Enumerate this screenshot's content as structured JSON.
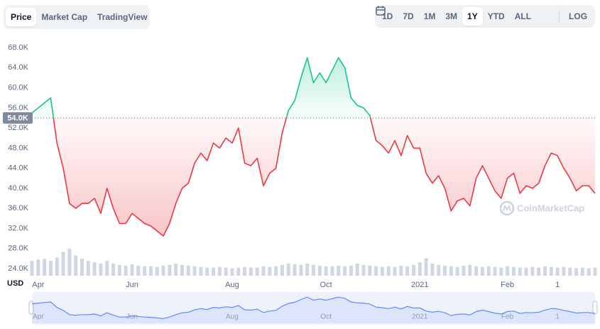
{
  "toolbar": {
    "tabs": [
      {
        "label": "Price",
        "active": true
      },
      {
        "label": "Market Cap"
      },
      {
        "label": "TradingView"
      }
    ],
    "ranges": [
      {
        "label": "1D"
      },
      {
        "label": "7D"
      },
      {
        "label": "1M"
      },
      {
        "label": "3M"
      },
      {
        "label": "1Y",
        "active": true
      },
      {
        "label": "YTD"
      },
      {
        "label": "ALL"
      }
    ],
    "log": "LOG"
  },
  "chart_data": {
    "type": "line",
    "currency": "USD",
    "watermark": "CoinMarketCap",
    "categories": [
      null,
      "Apr",
      null,
      null,
      null,
      null,
      null,
      null,
      null,
      null,
      null,
      null,
      null,
      null,
      null,
      null,
      "Jun",
      null,
      null,
      null,
      null,
      null,
      null,
      null,
      null,
      null,
      null,
      null,
      null,
      null,
      null,
      null,
      "Aug",
      null,
      null,
      null,
      null,
      null,
      null,
      null,
      null,
      null,
      null,
      null,
      null,
      null,
      null,
      "Oct",
      null,
      null,
      null,
      null,
      null,
      null,
      null,
      null,
      null,
      null,
      null,
      null,
      null,
      null,
      "2021",
      null,
      null,
      null,
      null,
      null,
      null,
      null,
      null,
      null,
      null,
      null,
      null,
      null,
      "Feb",
      null,
      null,
      null,
      null,
      null,
      null,
      null,
      "1",
      null,
      null,
      null,
      null,
      null,
      null
    ],
    "values": [
      55000,
      56000,
      57000,
      58000,
      49000,
      44000,
      37000,
      36000,
      37000,
      37000,
      38000,
      35000,
      40000,
      36000,
      33000,
      33000,
      35000,
      34000,
      33000,
      32500,
      31500,
      30500,
      33000,
      37000,
      40000,
      41000,
      45000,
      47000,
      45500,
      49000,
      48000,
      50000,
      49000,
      52000,
      45000,
      44500,
      46000,
      40500,
      43000,
      44000,
      51000,
      55500,
      57500,
      62000,
      66000,
      61000,
      63000,
      61000,
      63500,
      66000,
      64000,
      58000,
      56500,
      56000,
      54500,
      49500,
      48500,
      47000,
      49500,
      46500,
      50500,
      48000,
      48000,
      43000,
      41000,
      42500,
      40000,
      35500,
      37500,
      38000,
      36500,
      42000,
      44500,
      42000,
      39500,
      38000,
      42000,
      43000,
      39000,
      40500,
      40000,
      41000,
      44500,
      47000,
      46500,
      44000,
      42000,
      39500,
      40500,
      40500,
      39000
    ],
    "volume": [
      22,
      24,
      25,
      22,
      27,
      35,
      40,
      30,
      25,
      22,
      20,
      18,
      22,
      18,
      16,
      15,
      17,
      15,
      14,
      14,
      13,
      15,
      16,
      18,
      16,
      15,
      14,
      13,
      12,
      12,
      13,
      12,
      11,
      12,
      13,
      12,
      12,
      14,
      13,
      14,
      16,
      18,
      17,
      16,
      18,
      16,
      15,
      14,
      14,
      15,
      14,
      15,
      18,
      16,
      15,
      14,
      13,
      14,
      13,
      15,
      14,
      16,
      20,
      26,
      18,
      16,
      15,
      14,
      13,
      15,
      16,
      14,
      13,
      14,
      13,
      12,
      14,
      13,
      12,
      12,
      13,
      12,
      14,
      13,
      12,
      13,
      12,
      11,
      12,
      11,
      12
    ],
    "reference": {
      "value": 54000,
      "label": "54.0K"
    },
    "up_color": "#16c784",
    "down_color": "#ea3943",
    "volume_color": "#cfd6e4",
    "navigator_color": "#6188ff",
    "ylim": [
      22600,
      69700
    ],
    "yticks": [
      {
        "value": 24000,
        "label": "24.0K"
      },
      {
        "value": 28000,
        "label": "28.0K"
      },
      {
        "value": 32000,
        "label": "32.0K"
      },
      {
        "value": 36000,
        "label": "36.0K"
      },
      {
        "value": 40000,
        "label": "40.0K"
      },
      {
        "value": 44000,
        "label": "44.0K"
      },
      {
        "value": 48000,
        "label": "48.0K"
      },
      {
        "value": 52000,
        "label": "52.0K"
      },
      {
        "value": 56000,
        "label": "56.0K"
      },
      {
        "value": 60000,
        "label": "60.0K"
      },
      {
        "value": 64000,
        "label": "64.0K"
      },
      {
        "value": 68000,
        "label": "68.0K"
      }
    ],
    "grid": false
  }
}
